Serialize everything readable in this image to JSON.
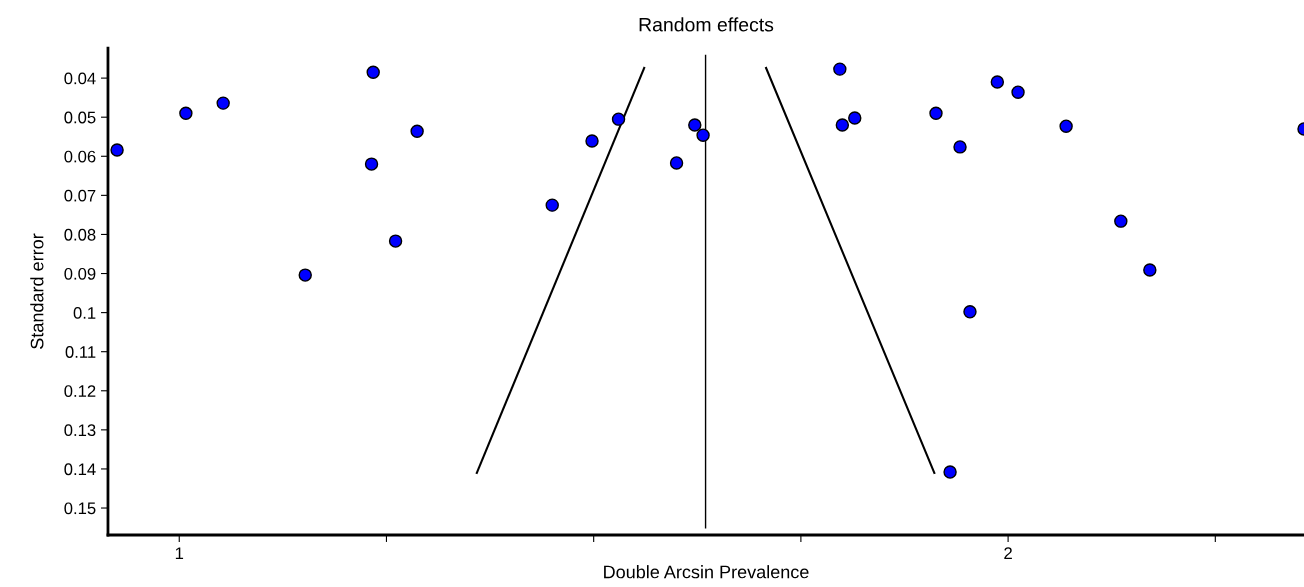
{
  "chart_data": {
    "type": "scatter",
    "title": "Random effects",
    "xlabel": "Double Arcsin Prevalence",
    "ylabel": "Standard error",
    "xlim": [
      0.914,
      2.357
    ],
    "ylim": [
      0.1569,
      0.0323
    ],
    "xticks": [
      1,
      {
        "value": 1.25,
        "label": null
      },
      {
        "value": 1.5,
        "label": null
      },
      {
        "value": 1.75,
        "label": null
      },
      2,
      {
        "value": 2.25,
        "label": null
      }
    ],
    "yticks": [
      0.04,
      0.05,
      0.06,
      0.07,
      0.08,
      0.09,
      0.1,
      0.11,
      0.12,
      0.13,
      0.14,
      0.15
    ],
    "grid": false,
    "legend": false,
    "series": [
      {
        "marker": "circle",
        "color": "#0000ff",
        "x": [
          0.925,
          1.008,
          1.053,
          1.152,
          1.234,
          1.232,
          1.261,
          1.287,
          1.45,
          1.498,
          1.53,
          1.6,
          1.622,
          1.632,
          1.797,
          1.8,
          1.815,
          1.913,
          1.942,
          1.987,
          2.012,
          2.07,
          2.136,
          2.171,
          1.954,
          1.93,
          2.357
        ],
        "values": [
          0.0584,
          0.049,
          0.0464,
          0.0904,
          0.0385,
          0.062,
          0.0817,
          0.0536,
          0.0725,
          0.0561,
          0.0505,
          0.0617,
          0.052,
          0.0546,
          0.0377,
          0.052,
          0.0502,
          0.049,
          0.0576,
          0.041,
          0.0436,
          0.0523,
          0.0766,
          0.0891,
          0.0998,
          0.1408,
          0.053
        ]
      },
      {
        "type": "line",
        "marker": "none",
        "color": "#000000",
        "x": [
          1.561,
          1.359
        ],
        "values": [
          0.0374,
          0.141
        ]
      },
      {
        "type": "line",
        "marker": "none",
        "color": "#000000",
        "x": [
          1.708,
          1.911
        ],
        "values": [
          0.0374,
          0.141
        ]
      }
    ],
    "ref_lines": [
      {
        "axis": "x",
        "value": 1.635,
        "color": "#000000"
      }
    ]
  }
}
